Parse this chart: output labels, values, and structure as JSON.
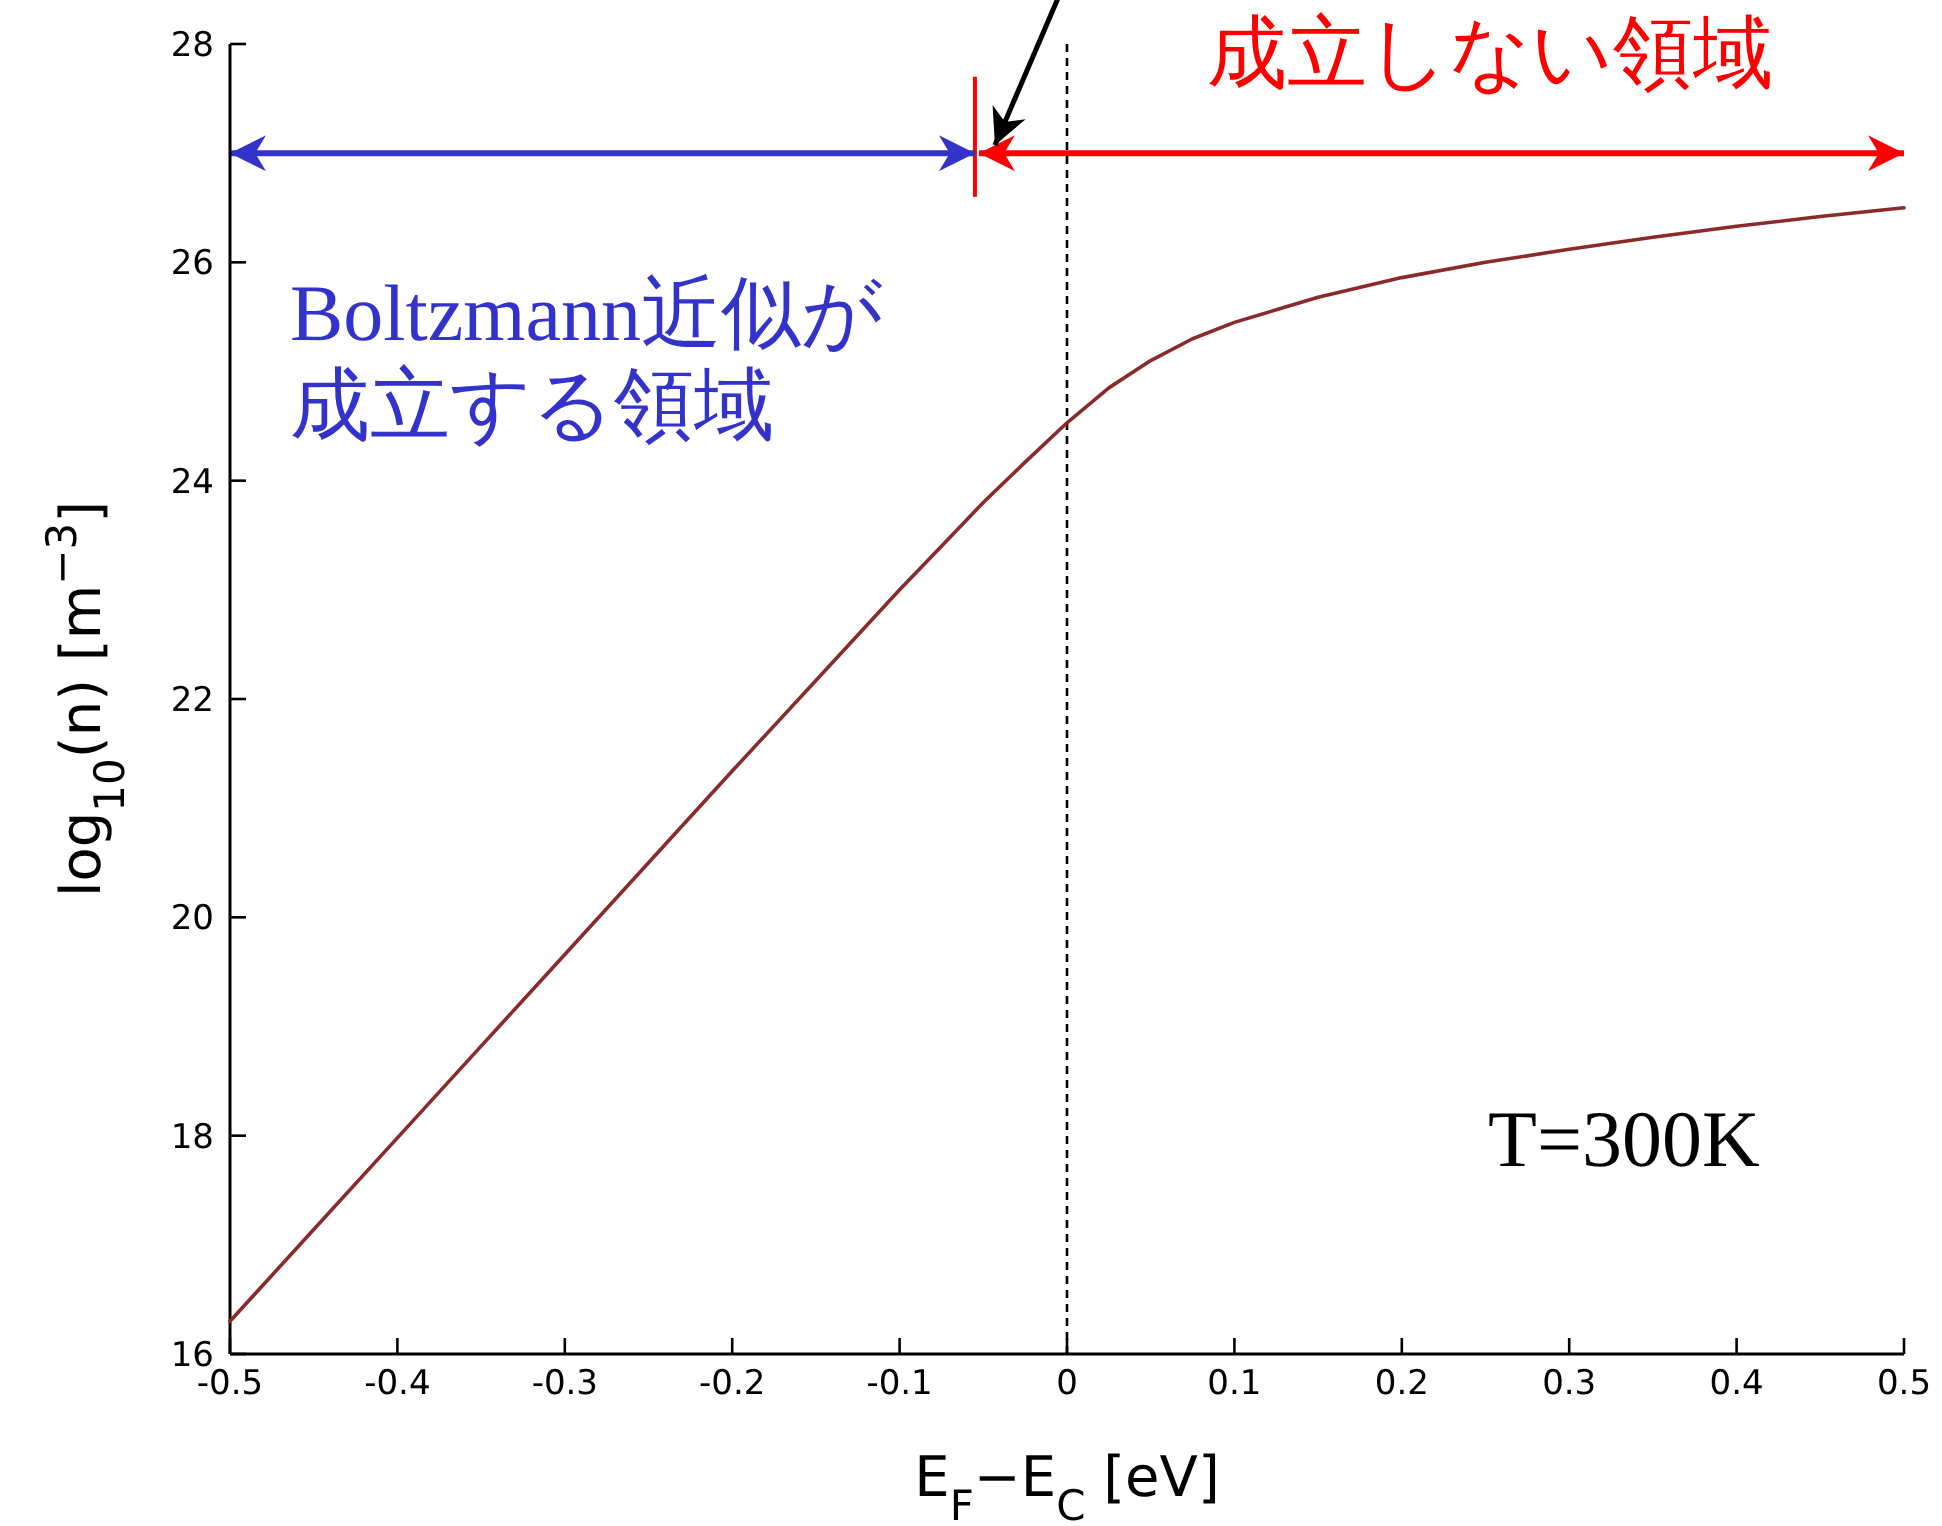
{
  "chart_data": {
    "type": "line",
    "xlabel": "E$_{F}$−E$_{C}$ [eV]",
    "ylabel": "log$_{10}$(n) [m$^{−3}$]",
    "x": [
      -0.5,
      -0.45,
      -0.4,
      -0.35,
      -0.3,
      -0.25,
      -0.2,
      -0.15,
      -0.1,
      -0.075,
      -0.05,
      -0.025,
      0,
      0.025,
      0.05,
      0.075,
      0.1,
      0.15,
      0.2,
      0.25,
      0.3,
      0.35,
      0.4,
      0.45,
      0.5
    ],
    "series": [
      {
        "color": "#8b2a2a",
        "values": [
          16.3,
          17.14,
          17.98,
          18.82,
          19.66,
          20.5,
          21.34,
          22.17,
          23.0,
          23.4,
          23.8,
          24.17,
          24.53,
          24.85,
          25.1,
          25.3,
          25.45,
          25.68,
          25.86,
          26.0,
          26.12,
          26.23,
          26.33,
          26.42,
          26.5
        ]
      }
    ],
    "xlim": [
      -0.5,
      0.5
    ],
    "ylim": [
      16,
      28
    ],
    "xticks": [
      {
        "value": -0.5,
        "label": "-0.5"
      },
      {
        "value": -0.4,
        "label": "-0.4"
      },
      {
        "value": -0.3,
        "label": "-0.3"
      },
      {
        "value": -0.2,
        "label": "-0.2"
      },
      {
        "value": -0.1,
        "label": "-0.1"
      },
      0,
      0.1,
      0.2,
      0.3,
      0.4,
      0.5
    ],
    "yticks": [
      16,
      18,
      20,
      22,
      24,
      26,
      28
    ],
    "ref_lines": [
      {
        "axis": "x",
        "value": 0,
        "color": "#000000",
        "line_style": "dashed"
      },
      {
        "axis": "x",
        "value": -0.055,
        "color": "#ff0000",
        "line_style": "solid"
      }
    ],
    "annotations": [
      "成立しない領域",
      "Boltzmann近似が",
      "成立する領域",
      "T=300K"
    ]
  }
}
